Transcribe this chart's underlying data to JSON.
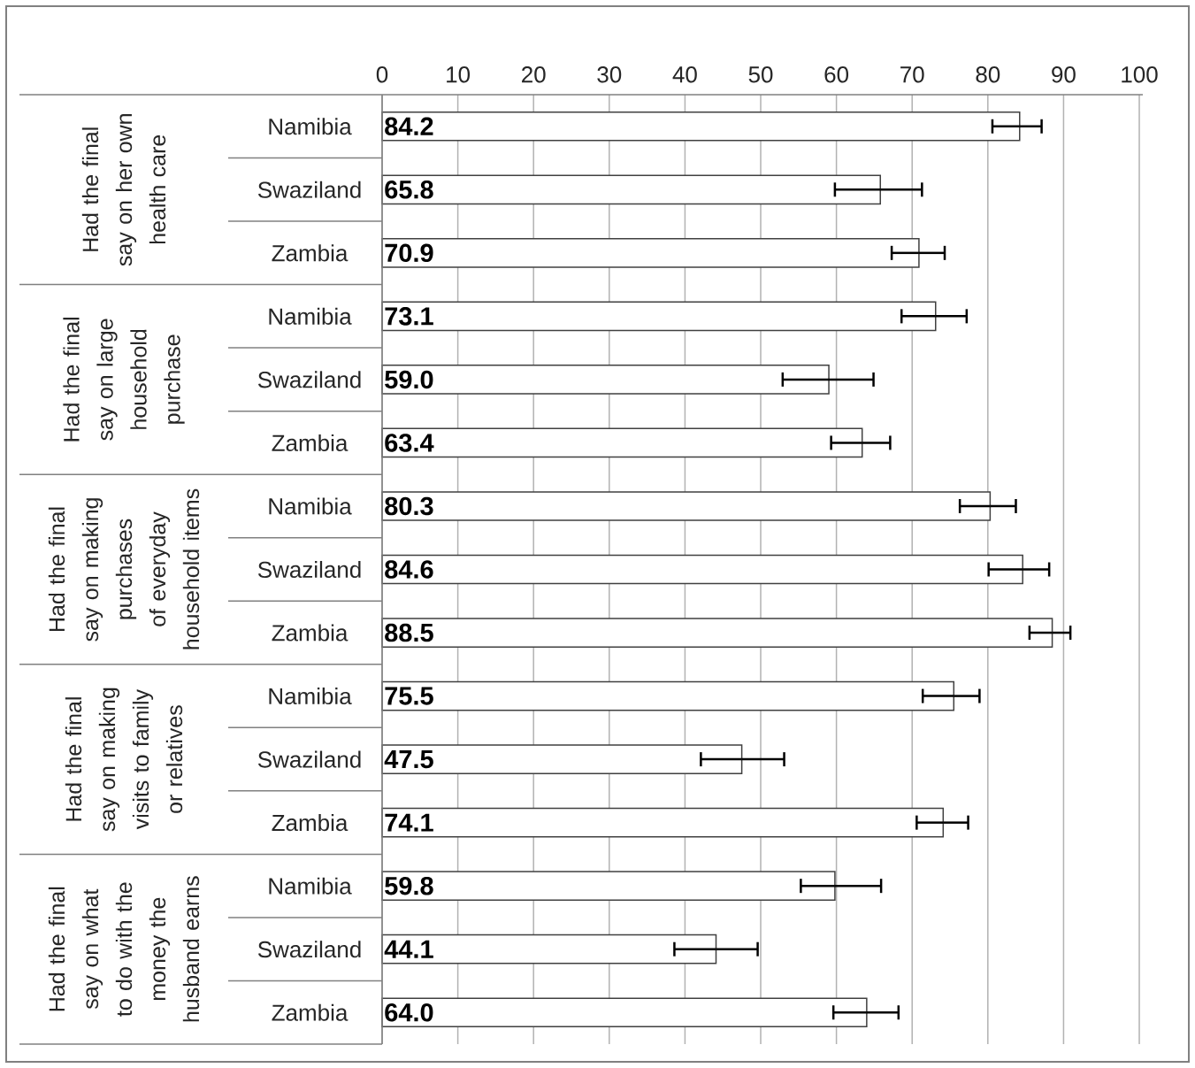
{
  "chart_data": {
    "type": "bar",
    "orientation": "horizontal",
    "categories": [
      "Namibia",
      "Swaziland",
      "Zambia",
      "Namibia",
      "Swaziland",
      "Zambia",
      "Namibia",
      "Swaziland",
      "Zambia",
      "Namibia",
      "Swaziland",
      "Zambia",
      "Namibia",
      "Swaziland",
      "Zambia"
    ],
    "values": [
      84.2,
      65.8,
      70.9,
      73.1,
      59.0,
      63.4,
      80.3,
      84.6,
      88.5,
      75.5,
      47.5,
      74.1,
      59.8,
      44.1,
      64.0
    ],
    "value_labels": [
      "84.2",
      "65.8",
      "70.9",
      "73.1",
      "59.0",
      "63.4",
      "80.3",
      "84.6",
      "88.5",
      "75.5",
      "47.5",
      "74.1",
      "59.8",
      "44.1",
      "64.0"
    ],
    "errors": [
      [
        80.6,
        87.1
      ],
      [
        59.8,
        71.3
      ],
      [
        67.3,
        74.3
      ],
      [
        68.6,
        77.2
      ],
      [
        52.9,
        64.9
      ],
      [
        59.3,
        67.1
      ],
      [
        76.3,
        83.7
      ],
      [
        80.1,
        88.1
      ],
      [
        85.5,
        90.9
      ],
      [
        71.4,
        78.9
      ],
      [
        42.1,
        53.1
      ],
      [
        70.6,
        77.4
      ],
      [
        55.3,
        65.9
      ],
      [
        38.6,
        49.6
      ],
      [
        59.6,
        68.2
      ]
    ],
    "color": "#ffffff",
    "xlim": [
      0,
      100
    ],
    "xticks": [
      0,
      10,
      20,
      30,
      40,
      50,
      60,
      70,
      80,
      90,
      100
    ],
    "grid": "x",
    "annotations": [
      "Had the final say on her own health care",
      "Had the final say on large household purchase",
      "Had the final say on making purchases of everyday household items",
      "Had the final say on making visits to family or relatives",
      "Had the final say on what to do with the money the husband earns"
    ]
  }
}
